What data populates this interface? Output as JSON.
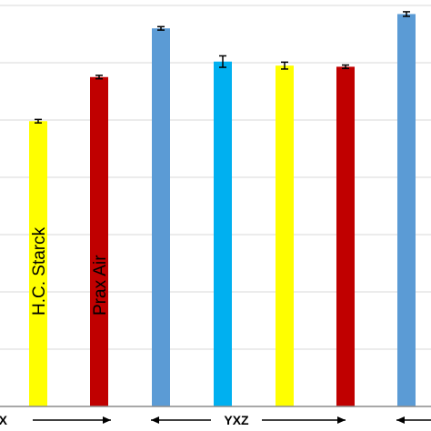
{
  "chart_data": {
    "type": "bar",
    "title": "",
    "xlabel": "",
    "ylabel": "",
    "grid": "horizontal",
    "ylim": [
      0,
      7
    ],
    "yticks": [
      0,
      1,
      2,
      3,
      4,
      5,
      6,
      7
    ],
    "bars": [
      {
        "value": 4.98,
        "error": 0.03,
        "color": "#FFFF00",
        "label": "H.C. Starck"
      },
      {
        "value": 5.75,
        "error": 0.03,
        "color": "#C00000",
        "label": "Prax Air"
      },
      {
        "value": 6.6,
        "error": 0.03,
        "color": "#5B9BD5",
        "label": ""
      },
      {
        "value": 6.02,
        "error": 0.1,
        "color": "#00B0F0",
        "label": ""
      },
      {
        "value": 5.95,
        "error": 0.06,
        "color": "#FFFF00",
        "label": ""
      },
      {
        "value": 5.93,
        "error": 0.03,
        "color": "#C00000",
        "label": ""
      },
      {
        "value": 6.85,
        "error": 0.04,
        "color": "#5B9BD5",
        "label": ""
      }
    ],
    "groups": [
      {
        "label": "X"
      },
      {
        "label": "YXZ"
      }
    ]
  }
}
